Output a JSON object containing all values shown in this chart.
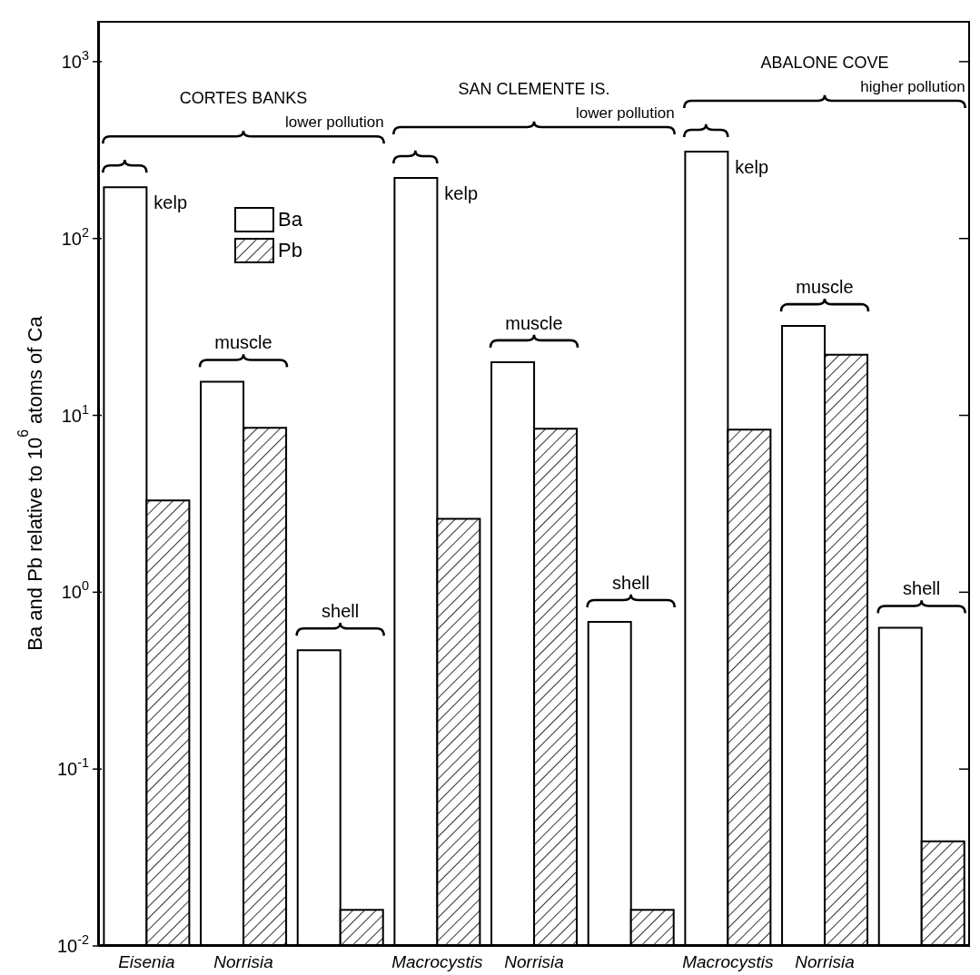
{
  "chart_data": {
    "type": "bar",
    "ylabel": "Ba and Pb relative to 10$^{6}$ atoms of Ca",
    "categories": [
      "Eisenia",
      "Norrisia",
      null,
      "Macrocystis",
      "Norrisia",
      null,
      "Macrocystis",
      "Norrisia",
      null
    ],
    "series": [
      {
        "name": "Ba",
        "color": "#000000",
        "values": [
          195,
          15.5,
          0.47,
          220,
          20,
          0.68,
          310,
          32,
          0.63
        ]
      },
      {
        "name": "Pb",
        "color": "#000000",
        "values": [
          3.3,
          8.5,
          0.016,
          2.6,
          8.4,
          0.016,
          8.3,
          22,
          0.039
        ]
      }
    ],
    "log": true,
    "ylim": [
      0.01,
      1700
    ],
    "yticks": [
      {
        "value": 0.01,
        "label": "10$^{-2}$"
      },
      {
        "value": 0.1,
        "label": "10$^{-1}$"
      },
      {
        "value": 1,
        "label": "10$^{0}$"
      },
      {
        "value": 10,
        "label": "10$^{1}$"
      },
      {
        "value": 100,
        "label": "10$^{2}$"
      },
      {
        "value": 1000,
        "label": "10$^{3}$"
      }
    ],
    "grid": false,
    "legend": "top left",
    "annotations": [
      "CORTES BANKS",
      "lower pollution",
      "kelp",
      "muscle",
      "shell",
      "SAN CLEMENTE IS.",
      "lower pollution",
      "kelp",
      "muscle",
      "shell",
      "ABALONE COVE",
      "higher pollution",
      "kelp",
      "muscle",
      "shell"
    ]
  }
}
